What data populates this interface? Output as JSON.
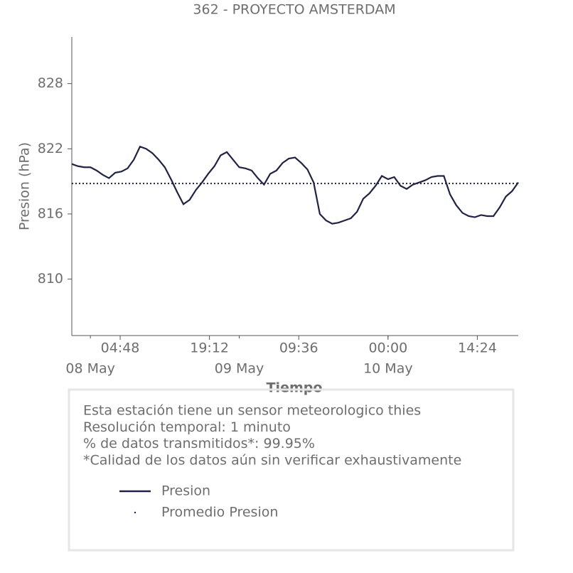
{
  "chart_data": {
    "type": "line",
    "title": "362 - PROYECTO AMSTERDAM",
    "xlabel": "Tiempo",
    "ylabel": "Presion (hPa)",
    "x": [
      "07 May 21:00",
      "07 May 22:00",
      "07 May 23:00",
      "08 May 00:00",
      "08 May 01:00",
      "08 May 02:00",
      "08 May 03:00",
      "08 May 04:00",
      "08 May 05:00",
      "08 May 06:00",
      "08 May 07:00",
      "08 May 08:00",
      "08 May 09:00",
      "08 May 10:00",
      "08 May 11:00",
      "08 May 12:00",
      "08 May 13:00",
      "08 May 14:00",
      "08 May 15:00",
      "08 May 16:00",
      "08 May 17:00",
      "08 May 18:00",
      "08 May 19:00",
      "08 May 20:00",
      "08 May 21:00",
      "08 May 22:00",
      "08 May 23:00",
      "09 May 00:00",
      "09 May 01:00",
      "09 May 02:00",
      "09 May 03:00",
      "09 May 04:00",
      "09 May 05:00",
      "09 May 06:00",
      "09 May 07:00",
      "09 May 08:00",
      "09 May 09:00",
      "09 May 10:00",
      "09 May 11:00",
      "09 May 12:00",
      "09 May 13:00",
      "09 May 14:00",
      "09 May 15:00",
      "09 May 16:00",
      "09 May 17:00",
      "09 May 18:00",
      "09 May 19:00",
      "09 May 20:00",
      "09 May 21:00",
      "09 May 22:00",
      "09 May 23:00",
      "10 May 00:00",
      "10 May 01:00",
      "10 May 02:00",
      "10 May 03:00",
      "10 May 04:00",
      "10 May 05:00",
      "10 May 06:00",
      "10 May 07:00",
      "10 May 08:00",
      "10 May 09:00",
      "10 May 10:00",
      "10 May 11:00",
      "10 May 12:00",
      "10 May 13:00",
      "10 May 14:00",
      "10 May 15:00",
      "10 May 16:00",
      "10 May 17:00",
      "10 May 18:00",
      "10 May 19:00",
      "10 May 20:00",
      "10 May 21:00"
    ],
    "series": [
      {
        "name": "Presion",
        "color": "#222244",
        "values": [
          820.6,
          820.4,
          820.3,
          820.3,
          820.0,
          819.6,
          819.3,
          819.8,
          819.9,
          820.2,
          821.0,
          822.2,
          822.0,
          821.6,
          821.0,
          820.3,
          819.2,
          818.0,
          816.9,
          817.3,
          818.2,
          818.9,
          819.7,
          820.4,
          821.4,
          821.7,
          821.0,
          820.3,
          820.2,
          820.0,
          819.3,
          818.7,
          819.7,
          820.0,
          820.7,
          821.1,
          821.2,
          820.7,
          820.1,
          818.9,
          816.0,
          815.4,
          815.1,
          815.2,
          815.4,
          815.6,
          816.2,
          817.4,
          817.9,
          818.6,
          819.5,
          819.2,
          819.4,
          818.6,
          818.3,
          818.7,
          818.9,
          819.1,
          819.4,
          819.5,
          819.5,
          817.8,
          816.8,
          816.1,
          815.8,
          815.7,
          815.9,
          815.8,
          815.8,
          816.6,
          817.6,
          818.1,
          818.9
        ]
      }
    ],
    "mean": {
      "name": "Promedio Presion",
      "color": "#222244",
      "value": 818.8
    },
    "xlim": [
      "07 May 21:00",
      "10 May 21:00"
    ],
    "xticks": [
      {
        "value": "08 May 04:48",
        "label": "04:48"
      },
      {
        "value": "08 May 19:12",
        "label": "19:12"
      },
      {
        "value": "09 May 09:36",
        "label": "09:36"
      },
      {
        "value": "10 May 00:00",
        "label": "00:00"
      },
      {
        "value": "10 May 14:24",
        "label": "14:24"
      }
    ],
    "xticks_minor": [
      {
        "value": "08 May 00:00",
        "label": "08 May"
      },
      {
        "value": "09 May 00:00",
        "label": "09 May"
      },
      {
        "value": "10 May 00:00",
        "label": "10 May"
      }
    ],
    "ylim": [
      804.8,
      832.3
    ],
    "yticks": [
      810,
      816,
      822,
      828
    ],
    "notes": [
      "Esta estación tiene un sensor meteorologico thies",
      "Resolución temporal: 1 minuto",
      "% de datos transmitidos*: 99.95%",
      "*Calidad de los datos aún sin verificar exhaustivamente"
    ]
  }
}
